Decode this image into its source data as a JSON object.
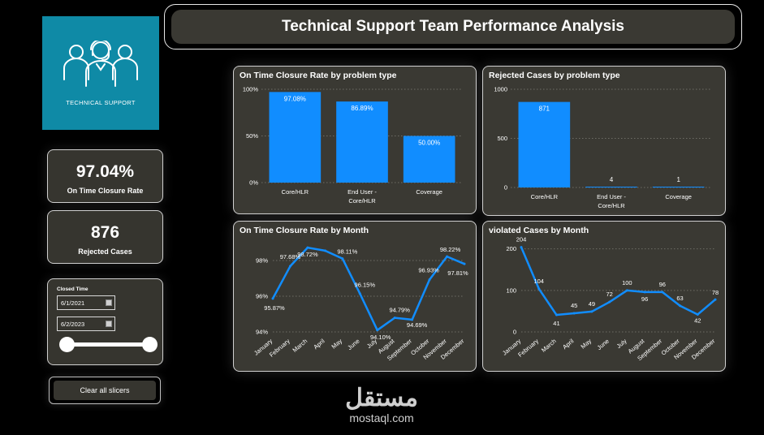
{
  "header": {
    "title": "Technical Support Team Performance Analysis"
  },
  "logo": {
    "caption": "TECHNICAL SUPPORT",
    "icon": "support-team-icon",
    "background": "#0f8aa6"
  },
  "kpis": [
    {
      "value": "97.04%",
      "label": "On Time Closure Rate"
    },
    {
      "value": "876",
      "label": "Rejected Cases"
    }
  ],
  "slicer": {
    "title": "Closed Time",
    "start": "6/1/2021",
    "end": "6/2/2023",
    "icon": "calendar-icon"
  },
  "clear_button": {
    "label": "Clear all slicers"
  },
  "watermark": {
    "script": "مستقل",
    "text": "mostaql.com"
  },
  "colors": {
    "bar": "#118dff",
    "panel": "#3a3933",
    "background": "#000000"
  },
  "chart_data": [
    {
      "id": "closure_by_type",
      "type": "bar",
      "title": "On Time Closure Rate by problem type",
      "categories": [
        "Core/HLR",
        "End User - Core/HLR",
        "Coverage"
      ],
      "category_lines": [
        [
          "Core/HLR"
        ],
        [
          "End User -",
          "Core/HLR"
        ],
        [
          "Coverage"
        ]
      ],
      "values": [
        97.08,
        86.89,
        50.0
      ],
      "data_labels": [
        "97.08%",
        "86.89%",
        "50.00%"
      ],
      "yticks": [
        0,
        50,
        100
      ],
      "ytick_labels": [
        "0%",
        "50%",
        "100%"
      ],
      "ylim": [
        0,
        100
      ],
      "grid": true
    },
    {
      "id": "rejected_by_type",
      "type": "bar",
      "title": "Rejected Cases by problem type",
      "categories": [
        "Core/HLR",
        "End User - Core/HLR",
        "Coverage"
      ],
      "category_lines": [
        [
          "Core/HLR"
        ],
        [
          "End User -",
          "Core/HLR"
        ],
        [
          "Coverage"
        ]
      ],
      "values": [
        871,
        4,
        1
      ],
      "data_labels": [
        "871",
        "4",
        "1"
      ],
      "yticks": [
        0,
        500,
        1000
      ],
      "ytick_labels": [
        "0",
        "500",
        "1000"
      ],
      "ylim": [
        0,
        1000
      ],
      "grid": true
    },
    {
      "id": "closure_by_month",
      "type": "line",
      "title": "On Time Closure Rate by Month",
      "categories": [
        "January",
        "February",
        "March",
        "April",
        "May",
        "June",
        "July",
        "August",
        "September",
        "October",
        "November",
        "December"
      ],
      "values": [
        95.87,
        97.68,
        98.72,
        98.55,
        98.11,
        96.15,
        94.1,
        94.79,
        94.69,
        96.93,
        98.22,
        97.81
      ],
      "data_labels": [
        "95.87%",
        "97.68%",
        "98.72%",
        "",
        "98.11%",
        "96.15%",
        "94.10%",
        "94.79%",
        "94.69%",
        "96.93%",
        "98.22%",
        "97.81%"
      ],
      "yticks": [
        94,
        96,
        98
      ],
      "ytick_labels": [
        "94%",
        "96%",
        "98%"
      ],
      "ylim": [
        94,
        99
      ],
      "grid": true
    },
    {
      "id": "violated_by_month",
      "type": "line",
      "title": "violated Cases by Month",
      "categories": [
        "January",
        "February",
        "March",
        "April",
        "May",
        "June",
        "July",
        "August",
        "September",
        "October",
        "November",
        "December"
      ],
      "values": [
        204,
        104,
        41,
        45,
        49,
        72,
        100,
        96,
        96,
        63,
        42,
        78
      ],
      "data_labels": [
        "204",
        "104",
        "41",
        "45",
        "49",
        "72",
        "100",
        "96",
        "96",
        "63",
        "42",
        "78"
      ],
      "yticks": [
        0,
        100,
        200
      ],
      "ytick_labels": [
        "0",
        "100",
        "200"
      ],
      "ylim": [
        0,
        215
      ],
      "grid": true
    }
  ]
}
